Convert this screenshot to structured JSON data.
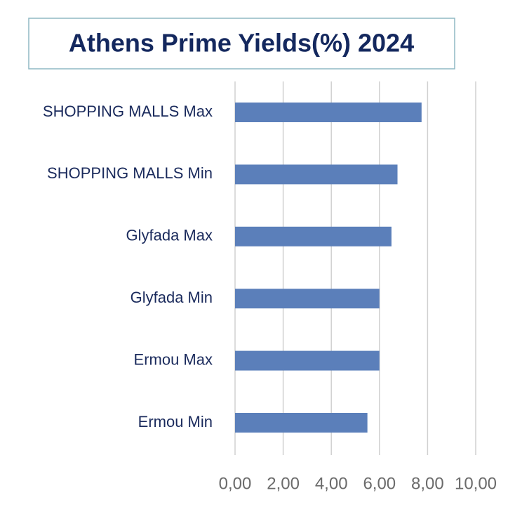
{
  "chart_data": {
    "type": "bar",
    "orientation": "horizontal",
    "title": "Athens Prime Yields(%) 2024",
    "categories": [
      "SHOPPING MALLS Max",
      "SHOPPING MALLS Min",
      "Glyfada Max",
      "Glyfada Min",
      "Ermou Max",
      "Ermou Min"
    ],
    "values": [
      7.75,
      6.75,
      6.5,
      6.0,
      6.0,
      5.5
    ],
    "color": "#5b7fba",
    "xlim": [
      0,
      10
    ],
    "xticks": [
      {
        "value": 0,
        "label": "0,00"
      },
      {
        "value": 2,
        "label": "2,00"
      },
      {
        "value": 4,
        "label": "4,00"
      },
      {
        "value": 6,
        "label": "6,00"
      },
      {
        "value": 8,
        "label": "8,00"
      },
      {
        "value": 10,
        "label": "10,00"
      }
    ],
    "grid": true
  }
}
